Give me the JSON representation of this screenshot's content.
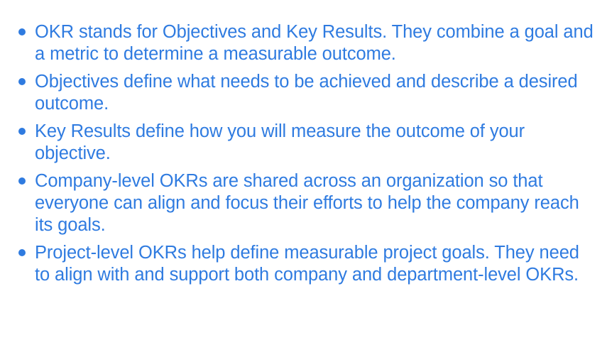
{
  "slide": {
    "accent_color": "#2f7be0",
    "background_color": "#ffffff",
    "bullets": [
      "OKR stands for Objectives and Key Results. They combine a goal and a metric to determine a measurable outcome.",
      "Objectives define what needs to be achieved and describe a desired outcome.",
      "Key Results define how you will measure the outcome of your objective.",
      "Company-level OKRs are shared across an organization so that everyone can align and focus their efforts to help the company reach its goals.",
      "Project-level OKRs help define measurable project goals. They need to align with and support both company and department-level OKRs."
    ]
  }
}
